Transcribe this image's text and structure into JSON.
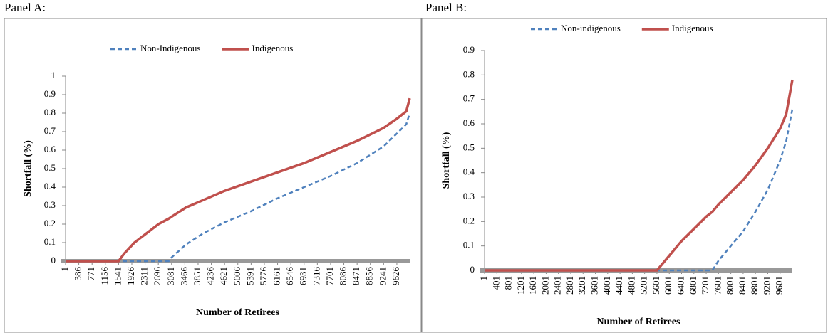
{
  "chart_data": [
    {
      "type": "line",
      "panel_label": "Panel A:",
      "y_label": "Shortfall (%)",
      "x_label": "Number of Retirees",
      "legend": "top",
      "x": [
        1,
        1541,
        1700,
        2000,
        2700,
        3000,
        3081,
        3500,
        4000,
        4621,
        5391,
        6161,
        6931,
        7701,
        8471,
        9241,
        9626,
        9900,
        10000
      ],
      "series": [
        {
          "name": "Non-Indigenous",
          "color": "#4f81bd",
          "style": "dashed",
          "values": [
            0,
            0,
            0,
            0,
            0,
            0,
            0.02,
            0.09,
            0.15,
            0.21,
            0.27,
            0.34,
            0.4,
            0.46,
            0.53,
            0.62,
            0.69,
            0.74,
            0.8
          ]
        },
        {
          "name": "Indigenous",
          "color": "#c0504d",
          "style": "solid",
          "values": [
            0,
            0,
            0.04,
            0.1,
            0.2,
            0.23,
            0.24,
            0.29,
            0.33,
            0.38,
            0.43,
            0.48,
            0.53,
            0.59,
            0.65,
            0.72,
            0.77,
            0.81,
            0.88
          ]
        }
      ],
      "xlim": [
        1,
        10000
      ],
      "xticks": [
        1,
        386,
        771,
        1156,
        1541,
        1926,
        2311,
        2696,
        3081,
        3466,
        3851,
        4236,
        4621,
        5006,
        5391,
        5776,
        6161,
        6546,
        6931,
        7316,
        7701,
        8086,
        8471,
        8856,
        9241,
        9626
      ],
      "ylim": [
        0,
        1
      ],
      "yticks": [
        0,
        0.1,
        0.2,
        0.3,
        0.4,
        0.5,
        0.6,
        0.7,
        0.8,
        0.9,
        1
      ]
    },
    {
      "type": "line",
      "panel_label": "Panel B:",
      "y_label": "Shortfall (%)",
      "x_label": "Number of Retirees",
      "legend": "top",
      "x": [
        1,
        5601,
        6001,
        6401,
        6801,
        7201,
        7401,
        7601,
        8001,
        8401,
        8801,
        9201,
        9601,
        9801,
        10000
      ],
      "series": [
        {
          "name": "Non-indigenous",
          "color": "#4f81bd",
          "style": "dashed",
          "values": [
            0,
            0,
            0,
            0,
            0,
            0,
            0,
            0.04,
            0.1,
            0.16,
            0.24,
            0.33,
            0.45,
            0.53,
            0.66
          ]
        },
        {
          "name": "Indigenous",
          "color": "#c0504d",
          "style": "solid",
          "values": [
            0,
            0,
            0.06,
            0.12,
            0.17,
            0.22,
            0.24,
            0.27,
            0.32,
            0.37,
            0.43,
            0.5,
            0.58,
            0.64,
            0.78
          ]
        }
      ],
      "xlim": [
        1,
        10000
      ],
      "xticks": [
        1,
        401,
        801,
        1201,
        1601,
        2001,
        2401,
        2801,
        3201,
        3601,
        4001,
        4401,
        4801,
        5201,
        5601,
        6001,
        6401,
        6801,
        7201,
        7601,
        8001,
        8401,
        8801,
        9201,
        9601
      ],
      "ylim": [
        0,
        0.9
      ],
      "yticks": [
        0,
        0.1,
        0.2,
        0.3,
        0.4,
        0.5,
        0.6,
        0.7,
        0.8,
        0.9
      ]
    }
  ]
}
